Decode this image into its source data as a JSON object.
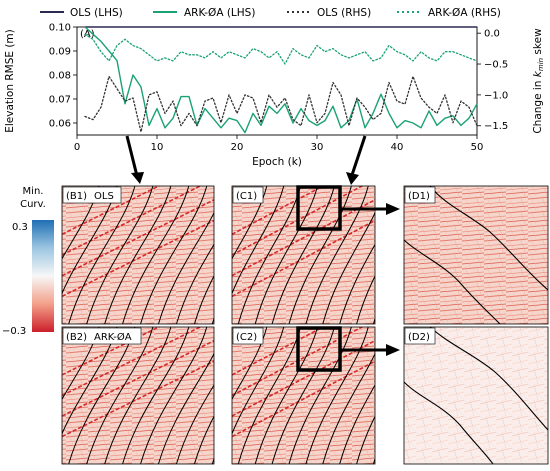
{
  "legend": [
    {
      "label": "OLS (LHS)",
      "color": "#2b2b52",
      "style": "solid"
    },
    {
      "label": "ARK-ØA (LHS)",
      "color": "#1aa274",
      "style": "solid"
    },
    {
      "label": "OLS (RHS)",
      "color": "#333333",
      "style": "dotted"
    },
    {
      "label": "ARK-ØA (RHS)",
      "color": "#1aa274",
      "style": "dotted"
    }
  ],
  "chart_data": {
    "type": "line",
    "panel_label": "(A)",
    "xlabel": "Epoch (k)",
    "ylabel_left": "Elevation RMSE (m)",
    "ylabel_right": "Change in k_min skew",
    "xlim": [
      0,
      50
    ],
    "ylim_left": [
      0.055,
      0.1
    ],
    "ylim_right": [
      -1.65,
      0.1
    ],
    "x_ticks": [
      "0",
      "10",
      "20",
      "30",
      "40",
      "50"
    ],
    "y_ticks_left": [
      "0.06",
      "0.07",
      "0.08",
      "0.09",
      "0.10"
    ],
    "y_ticks_right": [
      "-1.5",
      "-1.0",
      "-0.5",
      "0.0"
    ],
    "x": [
      1,
      2,
      3,
      4,
      5,
      6,
      7,
      8,
      9,
      10,
      11,
      12,
      13,
      14,
      15,
      16,
      17,
      18,
      19,
      20,
      21,
      22,
      23,
      24,
      25,
      26,
      27,
      28,
      29,
      30,
      31,
      32,
      33,
      34,
      35,
      36,
      37,
      38,
      39,
      40,
      41,
      42,
      43,
      44,
      45,
      46,
      47,
      48,
      49,
      50
    ],
    "series": [
      {
        "name": "OLS (LHS)",
        "axis": "left",
        "style": "solid",
        "color": "#2b2b52",
        "values": [
          0.1,
          0.1,
          0.1,
          0.1,
          0.1,
          0.1,
          0.1,
          0.1,
          0.1,
          0.1,
          0.1,
          0.1,
          0.1,
          0.1,
          0.1,
          0.1,
          0.1,
          0.1,
          0.1,
          0.1,
          0.1,
          0.1,
          0.1,
          0.1,
          0.1,
          0.1,
          0.1,
          0.1,
          0.1,
          0.1,
          0.1,
          0.1,
          0.1,
          0.1,
          0.1,
          0.1,
          0.1,
          0.1,
          0.1,
          0.1,
          0.1,
          0.1,
          0.1,
          0.1,
          0.1,
          0.1,
          0.1,
          0.1,
          0.1,
          0.1
        ]
      },
      {
        "name": "ARK-ØA (LHS)",
        "axis": "left",
        "style": "solid",
        "color": "#1aa274",
        "values": [
          0.1,
          0.097,
          0.094,
          0.09,
          0.086,
          0.068,
          0.08,
          0.075,
          0.059,
          0.066,
          0.058,
          0.062,
          0.071,
          0.071,
          0.059,
          0.066,
          0.062,
          0.058,
          0.062,
          0.061,
          0.056,
          0.064,
          0.059,
          0.067,
          0.064,
          0.068,
          0.06,
          0.066,
          0.061,
          0.059,
          0.061,
          0.067,
          0.058,
          0.061,
          0.07,
          0.058,
          0.064,
          0.072,
          0.064,
          0.058,
          0.061,
          0.06,
          0.058,
          0.065,
          0.059,
          0.062,
          0.063,
          0.059,
          0.062,
          0.068
        ]
      },
      {
        "name": "OLS (RHS)",
        "axis": "right",
        "style": "dotted",
        "color": "#333333",
        "values": [
          -1.35,
          -1.4,
          -1.2,
          -0.7,
          -0.9,
          -1.1,
          -1.05,
          -1.6,
          -1.0,
          -0.95,
          -1.3,
          -1.1,
          -1.5,
          -1.3,
          -1.5,
          -1.1,
          -1.05,
          -1.45,
          -1.0,
          -1.3,
          -1.0,
          -1.05,
          -1.45,
          -1.0,
          -1.2,
          -1.05,
          -1.4,
          -1.5,
          -1.0,
          -1.45,
          -1.3,
          -0.8,
          -1.0,
          -1.5,
          -1.05,
          -1.2,
          -1.4,
          -1.3,
          -0.8,
          -1.1,
          -1.15,
          -0.7,
          -1.05,
          -1.2,
          -1.3,
          -1.0,
          -1.45,
          -1.1,
          -1.2,
          -1.5
        ]
      },
      {
        "name": "ARK-ØA (RHS)",
        "axis": "right",
        "style": "dotted",
        "color": "#1aa274",
        "values": [
          -0.02,
          -0.1,
          -0.3,
          -0.45,
          -0.2,
          -0.1,
          -0.2,
          -0.25,
          -0.35,
          -0.45,
          -0.4,
          -0.45,
          -0.3,
          -0.35,
          -0.35,
          -0.4,
          -0.3,
          -0.4,
          -0.3,
          -0.35,
          -0.4,
          -0.25,
          -0.3,
          -0.4,
          -0.3,
          -0.5,
          -0.25,
          -0.35,
          -0.4,
          -0.2,
          -0.3,
          -0.25,
          -0.35,
          -0.4,
          -0.35,
          -0.3,
          -0.45,
          -0.4,
          -0.2,
          -0.3,
          -0.35,
          -0.45,
          -0.3,
          -0.4,
          -0.45,
          -0.3,
          -0.3,
          -0.35,
          -0.4,
          -0.45
        ]
      }
    ],
    "grid": false
  },
  "colorbar": {
    "title_line1": "Min.",
    "title_line2": "Curv.",
    "max_label": "0.3",
    "min_label": "−0.3",
    "color_max": "#1f6fb4",
    "color_min": "#cc1f2b"
  },
  "panels": {
    "b1": "(B1)",
    "b1_title": "OLS",
    "b2": "(B2)",
    "b2_title": "ARK-ØA",
    "c1": "(C1)",
    "c2": "(C2)",
    "d1": "(D1)",
    "d2": "(D2)"
  }
}
